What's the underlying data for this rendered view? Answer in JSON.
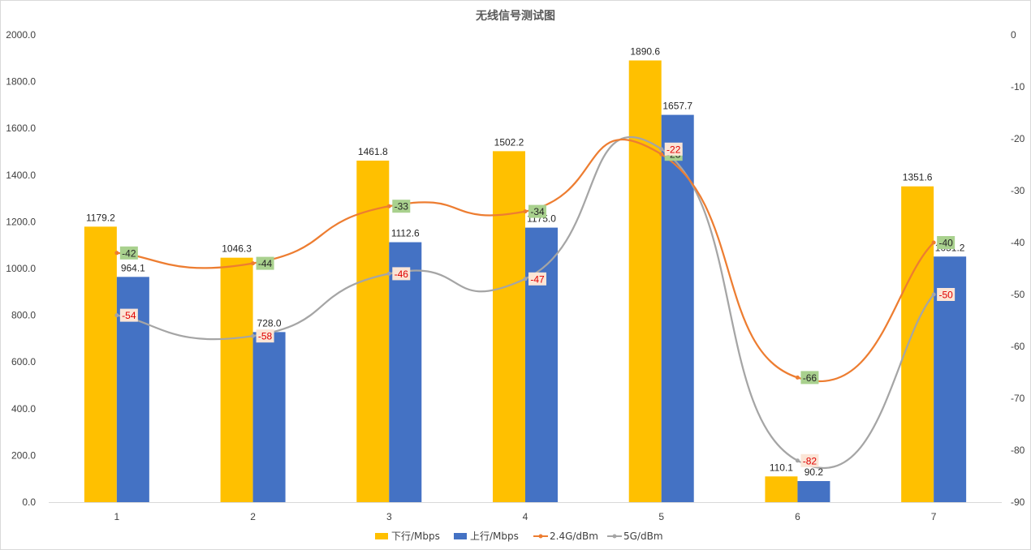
{
  "chart_data": {
    "type": "bar",
    "title": "无线信号测试图",
    "categories": [
      "1",
      "2",
      "3",
      "4",
      "5",
      "6",
      "7"
    ],
    "y_left": {
      "min": 0,
      "max": 2000,
      "step": 200,
      "tick_labels": [
        "0.0",
        "200.0",
        "400.0",
        "600.0",
        "800.0",
        "1000.0",
        "1200.0",
        "1400.0",
        "1600.0",
        "1800.0",
        "2000.0"
      ]
    },
    "y_right": {
      "min": -90,
      "max": 0,
      "step": 10,
      "tick_labels": [
        "0",
        "-10",
        "-20",
        "-30",
        "-40",
        "-50",
        "-60",
        "-70",
        "-80",
        "-90"
      ]
    },
    "series": [
      {
        "name": "下行/Mbps",
        "type": "bar",
        "axis": "left",
        "color": "#ffc000",
        "values": [
          1179.2,
          1046.3,
          1461.8,
          1502.2,
          1890.6,
          110.1,
          1351.6
        ],
        "labels": [
          "1179.2",
          "1046.3",
          "1461.8",
          "1502.2",
          "1890.6",
          "110.1",
          "1351.6"
        ]
      },
      {
        "name": "上行/Mbps",
        "type": "bar",
        "axis": "left",
        "color": "#4472c4",
        "values": [
          964.1,
          728.0,
          1112.6,
          1175.0,
          1657.7,
          90.2,
          1051.2
        ],
        "labels": [
          "964.1",
          "728.0",
          "1112.6",
          "1175.0",
          "1657.7",
          "90.2",
          "1051.2"
        ]
      },
      {
        "name": "2.4G/dBm",
        "type": "line",
        "axis": "right",
        "color": "#ed7d31",
        "label_bg": "#a9d18e",
        "values": [
          -42,
          -44,
          -33,
          -34,
          -23,
          -66,
          -40
        ],
        "labels": [
          "-42",
          "-44",
          "-33",
          "-34",
          "-23",
          "-66",
          "-40"
        ]
      },
      {
        "name": "5G/dBm",
        "type": "line",
        "axis": "right",
        "color": "#a5a5a5",
        "label_bg": "#fbe5d6",
        "values": [
          -54,
          -58,
          -46,
          -47,
          -22,
          -82,
          -50
        ],
        "labels": [
          "-54",
          "-58",
          "-46",
          "-47",
          "-22",
          "-82",
          "-50"
        ]
      }
    ],
    "legend": "bottom",
    "grid": false
  }
}
